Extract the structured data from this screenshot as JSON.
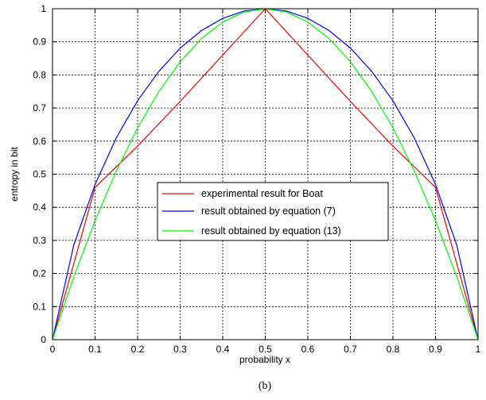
{
  "chart_data": {
    "type": "line",
    "xlabel": "probability x",
    "ylabel": "entropy in bit",
    "caption": "(b)",
    "xlim": [
      0,
      1
    ],
    "ylim": [
      0,
      1
    ],
    "xticks": [
      "0",
      "0.1",
      "0.2",
      "0.3",
      "0.4",
      "0.5",
      "0.6",
      "0.7",
      "0.8",
      "0.9",
      "1"
    ],
    "yticks": [
      "0",
      "0.1",
      "0.2",
      "0.3",
      "0.4",
      "0.5",
      "0.6",
      "0.7",
      "0.8",
      "0.9",
      "1"
    ],
    "grid": true,
    "legend_position": "center",
    "series": [
      {
        "name": "experimental result for Boat",
        "color": "#ff0000",
        "x": [
          0,
          0.1,
          0.2,
          0.3,
          0.4,
          0.5,
          0.6,
          0.7,
          0.8,
          0.9,
          1
        ],
        "y": [
          0,
          0.46,
          0.585,
          0.72,
          0.86,
          1.0,
          0.86,
          0.72,
          0.585,
          0.46,
          0
        ]
      },
      {
        "name": "result obtained by equation (7)",
        "color": "#0000ff",
        "x": [
          0,
          0.05,
          0.1,
          0.15,
          0.2,
          0.25,
          0.3,
          0.35,
          0.4,
          0.45,
          0.5,
          0.55,
          0.6,
          0.65,
          0.7,
          0.75,
          0.8,
          0.85,
          0.9,
          0.95,
          1
        ],
        "y": [
          0,
          0.286,
          0.469,
          0.61,
          0.722,
          0.811,
          0.881,
          0.934,
          0.971,
          0.993,
          1.0,
          0.993,
          0.971,
          0.934,
          0.881,
          0.811,
          0.722,
          0.61,
          0.469,
          0.286,
          0
        ]
      },
      {
        "name": "result obtained by equation (13)",
        "color": "#00ff00",
        "x": [
          0,
          0.05,
          0.1,
          0.15,
          0.2,
          0.25,
          0.3,
          0.35,
          0.4,
          0.45,
          0.5,
          0.55,
          0.6,
          0.65,
          0.7,
          0.75,
          0.8,
          0.85,
          0.9,
          0.95,
          1
        ],
        "y": [
          0,
          0.19,
          0.36,
          0.51,
          0.64,
          0.75,
          0.84,
          0.91,
          0.96,
          0.99,
          1.0,
          0.99,
          0.96,
          0.91,
          0.84,
          0.75,
          0.64,
          0.51,
          0.36,
          0.19,
          0
        ]
      }
    ]
  }
}
